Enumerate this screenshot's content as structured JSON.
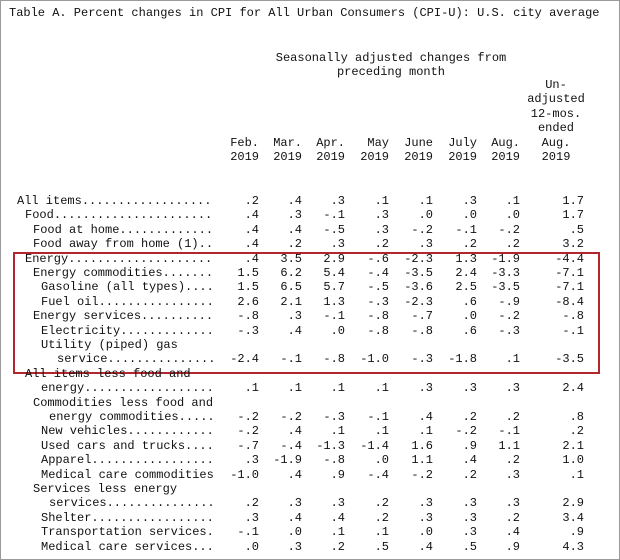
{
  "title": "Table A. Percent changes in CPI for All Urban Consumers (CPI-U): U.S. city average",
  "header": {
    "group": [
      "Seasonally adjusted changes from",
      "preceding month"
    ],
    "columns": [
      [
        "Feb.",
        "2019"
      ],
      [
        "Mar.",
        "2019"
      ],
      [
        "Apr.",
        "2019"
      ],
      [
        "May",
        "2019"
      ],
      [
        "June",
        "2019"
      ],
      [
        "July",
        "2019"
      ],
      [
        "Aug.",
        "2019"
      ],
      [
        "Un-",
        "adjusted",
        "12-mos.",
        "ended",
        "Aug.",
        "2019"
      ]
    ]
  },
  "rows": [
    {
      "label": [
        "All items"
      ],
      "values": [
        ".2",
        ".4",
        ".3",
        ".1",
        ".1",
        ".3",
        ".1",
        "1.7"
      ]
    },
    {
      "label": [
        "Food"
      ],
      "values": [
        ".4",
        ".3",
        "-.1",
        ".3",
        ".0",
        ".0",
        ".0",
        "1.7"
      ]
    },
    {
      "label": [
        "Food at home"
      ],
      "values": [
        ".4",
        ".4",
        "-.5",
        ".3",
        "-.2",
        "-.1",
        "-.2",
        ".5"
      ]
    },
    {
      "label": [
        "Food away from home (1)"
      ],
      "values": [
        ".4",
        ".2",
        ".3",
        ".2",
        ".3",
        ".2",
        ".2",
        "3.2"
      ]
    },
    {
      "label": [
        "Energy"
      ],
      "values": [
        ".4",
        "3.5",
        "2.9",
        "-.6",
        "-2.3",
        "1.3",
        "-1.9",
        "-4.4"
      ]
    },
    {
      "label": [
        "Energy commodities"
      ],
      "values": [
        "1.5",
        "6.2",
        "5.4",
        "-.4",
        "-3.5",
        "2.4",
        "-3.3",
        "-7.1"
      ]
    },
    {
      "label": [
        "Gasoline (all types)"
      ],
      "values": [
        "1.5",
        "6.5",
        "5.7",
        "-.5",
        "-3.6",
        "2.5",
        "-3.5",
        "-7.1"
      ]
    },
    {
      "label": [
        "Fuel oil"
      ],
      "values": [
        "2.6",
        "2.1",
        "1.3",
        "-.3",
        "-2.3",
        ".6",
        "-.9",
        "-8.4"
      ]
    },
    {
      "label": [
        "Energy services"
      ],
      "values": [
        "-.8",
        ".3",
        "-.1",
        "-.8",
        "-.7",
        ".0",
        "-.2",
        "-.8"
      ]
    },
    {
      "label": [
        "Electricity"
      ],
      "values": [
        "-.3",
        ".4",
        ".0",
        "-.8",
        "-.8",
        ".6",
        "-.3",
        "-.1"
      ]
    },
    {
      "label": [
        "Utility (piped) gas",
        "service"
      ],
      "values": [
        "-2.4",
        "-.1",
        "-.8",
        "-1.0",
        "-.3",
        "-1.8",
        ".1",
        "-3.5"
      ]
    },
    {
      "label": [
        "All items less food and",
        "energy"
      ],
      "values": [
        ".1",
        ".1",
        ".1",
        ".1",
        ".3",
        ".3",
        ".3",
        "2.4"
      ]
    },
    {
      "label": [
        "Commodities less food and",
        "energy commodities"
      ],
      "values": [
        "-.2",
        "-.2",
        "-.3",
        "-.1",
        ".4",
        ".2",
        ".2",
        ".8"
      ]
    },
    {
      "label": [
        "New vehicles"
      ],
      "values": [
        "-.2",
        ".4",
        ".1",
        ".1",
        ".1",
        "-.2",
        "-.1",
        ".2"
      ]
    },
    {
      "label": [
        "Used cars and trucks"
      ],
      "values": [
        "-.7",
        "-.4",
        "-1.3",
        "-1.4",
        "1.6",
        ".9",
        "1.1",
        "2.1"
      ]
    },
    {
      "label": [
        "Apparel"
      ],
      "values": [
        ".3",
        "-1.9",
        "-.8",
        ".0",
        "1.1",
        ".4",
        ".2",
        "1.0"
      ]
    },
    {
      "label": [
        "Medical care commodities"
      ],
      "values": [
        "-1.0",
        ".4",
        ".9",
        "-.4",
        "-.2",
        ".2",
        ".3",
        ".1"
      ]
    },
    {
      "label": [
        "Services less energy",
        "services"
      ],
      "values": [
        ".2",
        ".3",
        ".3",
        ".2",
        ".3",
        ".3",
        ".3",
        "2.9"
      ]
    },
    {
      "label": [
        "Shelter"
      ],
      "values": [
        ".3",
        ".4",
        ".4",
        ".2",
        ".3",
        ".3",
        ".2",
        "3.4"
      ]
    },
    {
      "label": [
        "Transportation services"
      ],
      "values": [
        "-.1",
        ".0",
        ".1",
        ".1",
        ".0",
        ".3",
        ".4",
        ".9"
      ]
    },
    {
      "label": [
        "Medical care services"
      ],
      "values": [
        ".0",
        ".3",
        ".2",
        ".5",
        ".4",
        ".5",
        ".9",
        "4.3"
      ]
    }
  ]
}
